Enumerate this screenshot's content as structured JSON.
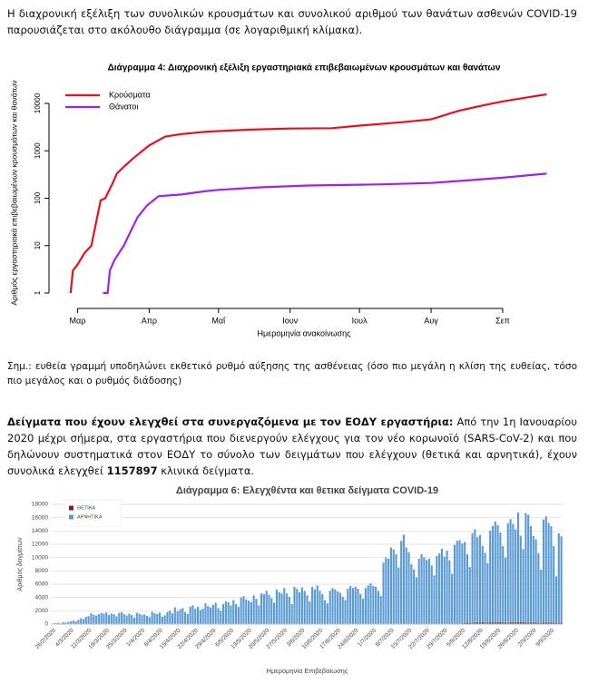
{
  "paragraphs": [
    "Η διαχρονική εξέλιξη των συνολικών κρουσμάτων και συνολικού αριθμού των θανάτων ασθενών COVID-19 παρουσιάζεται στο ακόλουθο διάγραμμα (σε λογαριθμική κλίμακα)."
  ],
  "note": "Σημ.: ευθεία γραμμή υποδηλώνει εκθετικό ρυθμό αύξησης της ασθένειας (όσο πιο μεγάλη η κλίση της ευθείας, τόσο πιο μεγάλος και ο ρυθμός διάδοσης)",
  "samples_paragraph": {
    "lead": "Δείγματα που έχουν ελεγχθεί στα συνεργαζόμενα με τον ΕΟΔΥ εργαστήρια:",
    "text": "Από την 1η Ιανουαρίου 2020 μέχρι σήμερα, στα εργαστήρια που διενεργούν ελέγχους για τον νέο κορωνοϊό (SARS-CoV-2) και που δηλώνουν συστηματικά στον ΕΟΔΥ το σύνολο των δειγμάτων που ελέγχουν (θετικά και αρνητικά), έχουν συνολικά ελεγχθεί",
    "total": "1157897",
    "tail": "κλινικά δείγματα."
  },
  "chart_data": [
    {
      "type": "line",
      "title": "Διάγραμμα 4: Διαχρονική εξέλιξη εργαστηριακά επιβεβαιωμένων κρουσμάτων και θανάτων",
      "x_label": "Ημερομηνία ανακοίνωσης",
      "y_label": "Αριθμός εργαστηριακά επιβεβαιωμένων κρουσμάτων και θανάτων",
      "log_scale": true,
      "legend": "top-left",
      "grid": false,
      "xlim": [
        -10,
        206
      ],
      "ylim": [
        0.59,
        18500
      ],
      "xticks": [
        {
          "value": 0,
          "label": "Μαρ"
        },
        {
          "value": 31,
          "label": "Απρ"
        },
        {
          "value": 61,
          "label": "Μαΐ"
        },
        {
          "value": 92,
          "label": "Ιουν"
        },
        {
          "value": 122,
          "label": "Ιουλ"
        },
        {
          "value": 153,
          "label": "Αυγ"
        },
        {
          "value": 184,
          "label": "Σεπ"
        }
      ],
      "yticks": [
        1,
        10,
        100,
        1000,
        10000
      ],
      "series": [
        {
          "name": "Κρούσματα",
          "color": "#e8101a",
          "x": [
            -3,
            -2,
            0,
            3,
            6,
            8,
            10,
            12,
            15,
            17,
            20,
            24,
            31,
            38,
            45,
            55,
            61,
            75,
            92,
            110,
            122,
            140,
            153,
            165,
            175,
            184,
            195,
            203
          ],
          "values": [
            1,
            3,
            4,
            7,
            10,
            30,
            90,
            100,
            200,
            330,
            460,
            690,
            1300,
            2000,
            2250,
            2500,
            2600,
            2800,
            2950,
            3000,
            3400,
            4000,
            4600,
            7000,
            9000,
            11000,
            13500,
            15500
          ]
        },
        {
          "name": "Θάνατοι",
          "color": "#a020f0",
          "x": [
            11,
            13,
            14,
            16,
            20,
            23,
            26,
            30,
            35,
            45,
            55,
            61,
            80,
            100,
            130,
            153,
            170,
            184,
            203
          ],
          "values": [
            1,
            1,
            3,
            5,
            10,
            20,
            40,
            70,
            110,
            120,
            140,
            150,
            170,
            185,
            195,
            210,
            240,
            270,
            330
          ]
        }
      ]
    },
    {
      "type": "bar",
      "stacked": true,
      "title": "Διάγραμμα 6: Ελεγχθέντα και θετικα δείγματα COVID-19",
      "x_label": "Ημερομηνία Επιβεβαίωσης",
      "y_label": "Αριθμός δειγμάτων",
      "legend": "top-left",
      "grid": true,
      "ylim": [
        0,
        18000
      ],
      "yticks": [
        0,
        2000,
        4000,
        6000,
        8000,
        10000,
        12000,
        14000,
        16000,
        18000
      ],
      "categories": [
        "26/2/2020",
        null,
        null,
        null,
        null,
        null,
        null,
        "4/3/2020",
        null,
        null,
        null,
        null,
        null,
        null,
        "11/3/2020",
        null,
        null,
        null,
        null,
        null,
        null,
        "18/3/2020",
        null,
        null,
        null,
        null,
        null,
        null,
        "25/3/2020",
        null,
        null,
        null,
        null,
        null,
        null,
        "1/4/2020",
        null,
        null,
        null,
        null,
        null,
        null,
        "8/4/2020",
        null,
        null,
        null,
        null,
        null,
        null,
        "15/4/2020",
        null,
        null,
        null,
        null,
        null,
        null,
        "22/4/2020",
        null,
        null,
        null,
        null,
        null,
        null,
        "29/4/2020",
        null,
        null,
        null,
        null,
        null,
        null,
        "6/5/2020",
        null,
        null,
        null,
        null,
        null,
        null,
        "13/5/2020",
        null,
        null,
        null,
        null,
        null,
        null,
        "20/5/2020",
        null,
        null,
        null,
        null,
        null,
        null,
        "27/5/2020",
        null,
        null,
        null,
        null,
        null,
        null,
        "3/6/2020",
        null,
        null,
        null,
        null,
        null,
        null,
        "10/6/2020",
        null,
        null,
        null,
        null,
        null,
        null,
        "17/6/2020",
        null,
        null,
        null,
        null,
        null,
        null,
        "24/6/2020",
        null,
        null,
        null,
        null,
        null,
        null,
        "1/7/2020",
        null,
        null,
        null,
        null,
        null,
        null,
        "8/7/2020",
        null,
        null,
        null,
        null,
        null,
        null,
        "15/7/2020",
        null,
        null,
        null,
        null,
        null,
        null,
        "22/7/2020",
        null,
        null,
        null,
        null,
        null,
        null,
        "29/7/2020",
        null,
        null,
        null,
        null,
        null,
        null,
        "5/8/2020",
        null,
        null,
        null,
        null,
        null,
        null,
        "12/8/2020",
        null,
        null,
        null,
        null,
        null,
        null,
        "19/8/2020",
        null,
        null,
        null,
        null,
        null,
        null,
        "26/8/2020",
        null,
        null,
        null,
        null,
        null,
        null,
        "2/9/2020",
        null,
        null,
        null,
        null,
        null,
        null,
        "9/9/2020",
        null,
        null,
        null,
        null
      ],
      "series": [
        {
          "name": "ΘΕΤΙΚΑ",
          "color": "#8b1a1a",
          "values": [
            0,
            0,
            3,
            4,
            10,
            14,
            20,
            30,
            35,
            40,
            50,
            60,
            70,
            90,
            100,
            120,
            100,
            80,
            90,
            95,
            80,
            70,
            80,
            90,
            70,
            60,
            80,
            100,
            95,
            90,
            70,
            60,
            80,
            100,
            60,
            50,
            60,
            40,
            50,
            60,
            40,
            30,
            30,
            25,
            30,
            20,
            15,
            30,
            20,
            15,
            20,
            15,
            10,
            20,
            25,
            15,
            10,
            10,
            15,
            10,
            20,
            15,
            10,
            10,
            15,
            10,
            10,
            20,
            10,
            10,
            10,
            10,
            10,
            10,
            15,
            10,
            10,
            10,
            10,
            10,
            10,
            10,
            15,
            10,
            10,
            10,
            15,
            10,
            10,
            10,
            10,
            10,
            10,
            10,
            10,
            15,
            10,
            15,
            20,
            15,
            20,
            10,
            10,
            15,
            10,
            15,
            10,
            15,
            10,
            15,
            20,
            25,
            20,
            20,
            30,
            25,
            20,
            25,
            30,
            20,
            20,
            30,
            25,
            20,
            15,
            20,
            25,
            20,
            15,
            10,
            20,
            25,
            20,
            25,
            15,
            20,
            10,
            20,
            25,
            25,
            30,
            20,
            30,
            25,
            20,
            25,
            30,
            40,
            40,
            30,
            25,
            40,
            50,
            30,
            40,
            60,
            70,
            80,
            100,
            120,
            110,
            120,
            150,
            200,
            180,
            160,
            250,
            260,
            200,
            270,
            230,
            200,
            260,
            250,
            230,
            270,
            280,
            230,
            200,
            170,
            290,
            260,
            240,
            280,
            300,
            270,
            200,
            240,
            240,
            250,
            220,
            190,
            170,
            220,
            200,
            210,
            230,
            220,
            180,
            150,
            200
          ]
        },
        {
          "name": "ΑΡΝΗΤΙΚΑ",
          "color": "#5b9bd5",
          "values": [
            100,
            150,
            200,
            100,
            300,
            200,
            300,
            400,
            500,
            400,
            600,
            800,
            700,
            1000,
            1100,
            1500,
            1300,
            1200,
            1400,
            1600,
            1500,
            1700,
            1300,
            1500,
            1400,
            1100,
            1600,
            1700,
            1400,
            1200,
            1500,
            1300,
            900,
            1600,
            1500,
            1300,
            1400,
            1200,
            1000,
            1800,
            1600,
            1500,
            1700,
            1100,
            1300,
            1800,
            2000,
            1600,
            2500,
            1900,
            2200,
            2400,
            1800,
            1500,
            2600,
            2800,
            2300,
            2600,
            2100,
            2300,
            3100,
            2700,
            2500,
            2900,
            3200,
            2400,
            2000,
            3000,
            3400,
            3300,
            2800,
            3600,
            3000,
            2600,
            4000,
            4200,
            3700,
            3500,
            3300,
            4300,
            3800,
            2800,
            4600,
            4500,
            5000,
            4400,
            3900,
            3200,
            5200,
            4800,
            4600,
            5400,
            4600,
            4100,
            3000,
            5600,
            5300,
            4800,
            5500,
            5000,
            4300,
            3400,
            5600,
            5200,
            5800,
            5000,
            4500,
            3600,
            3100,
            5000,
            5400,
            5200,
            4900,
            4700,
            4100,
            3600,
            5300,
            5700,
            5400,
            5600,
            5300,
            4500,
            3800,
            5400,
            5800,
            6100,
            5700,
            5600,
            5000,
            4200,
            9200,
            10000,
            9800,
            11500,
            11200,
            10500,
            8500,
            12500,
            13400,
            11500,
            10800,
            9000,
            8200,
            7000,
            9800,
            10500,
            10000,
            9600,
            9800,
            8800,
            7300,
            10200,
            10600,
            11300,
            10100,
            11000,
            9500,
            7500,
            11800,
            12400,
            12500,
            12000,
            12200,
            10300,
            8400,
            13500,
            14000,
            12800,
            13200,
            11500,
            10500,
            9000,
            13800,
            14500,
            15200,
            14600,
            13500,
            11500,
            9800,
            15000,
            15500,
            14800,
            14000,
            16500,
            13000,
            11000,
            16500,
            16200,
            14500,
            13000,
            12500,
            10500,
            8000,
            15500,
            16000,
            15000,
            14500,
            11500,
            7000,
            13500,
            13000
          ]
        }
      ]
    }
  ]
}
